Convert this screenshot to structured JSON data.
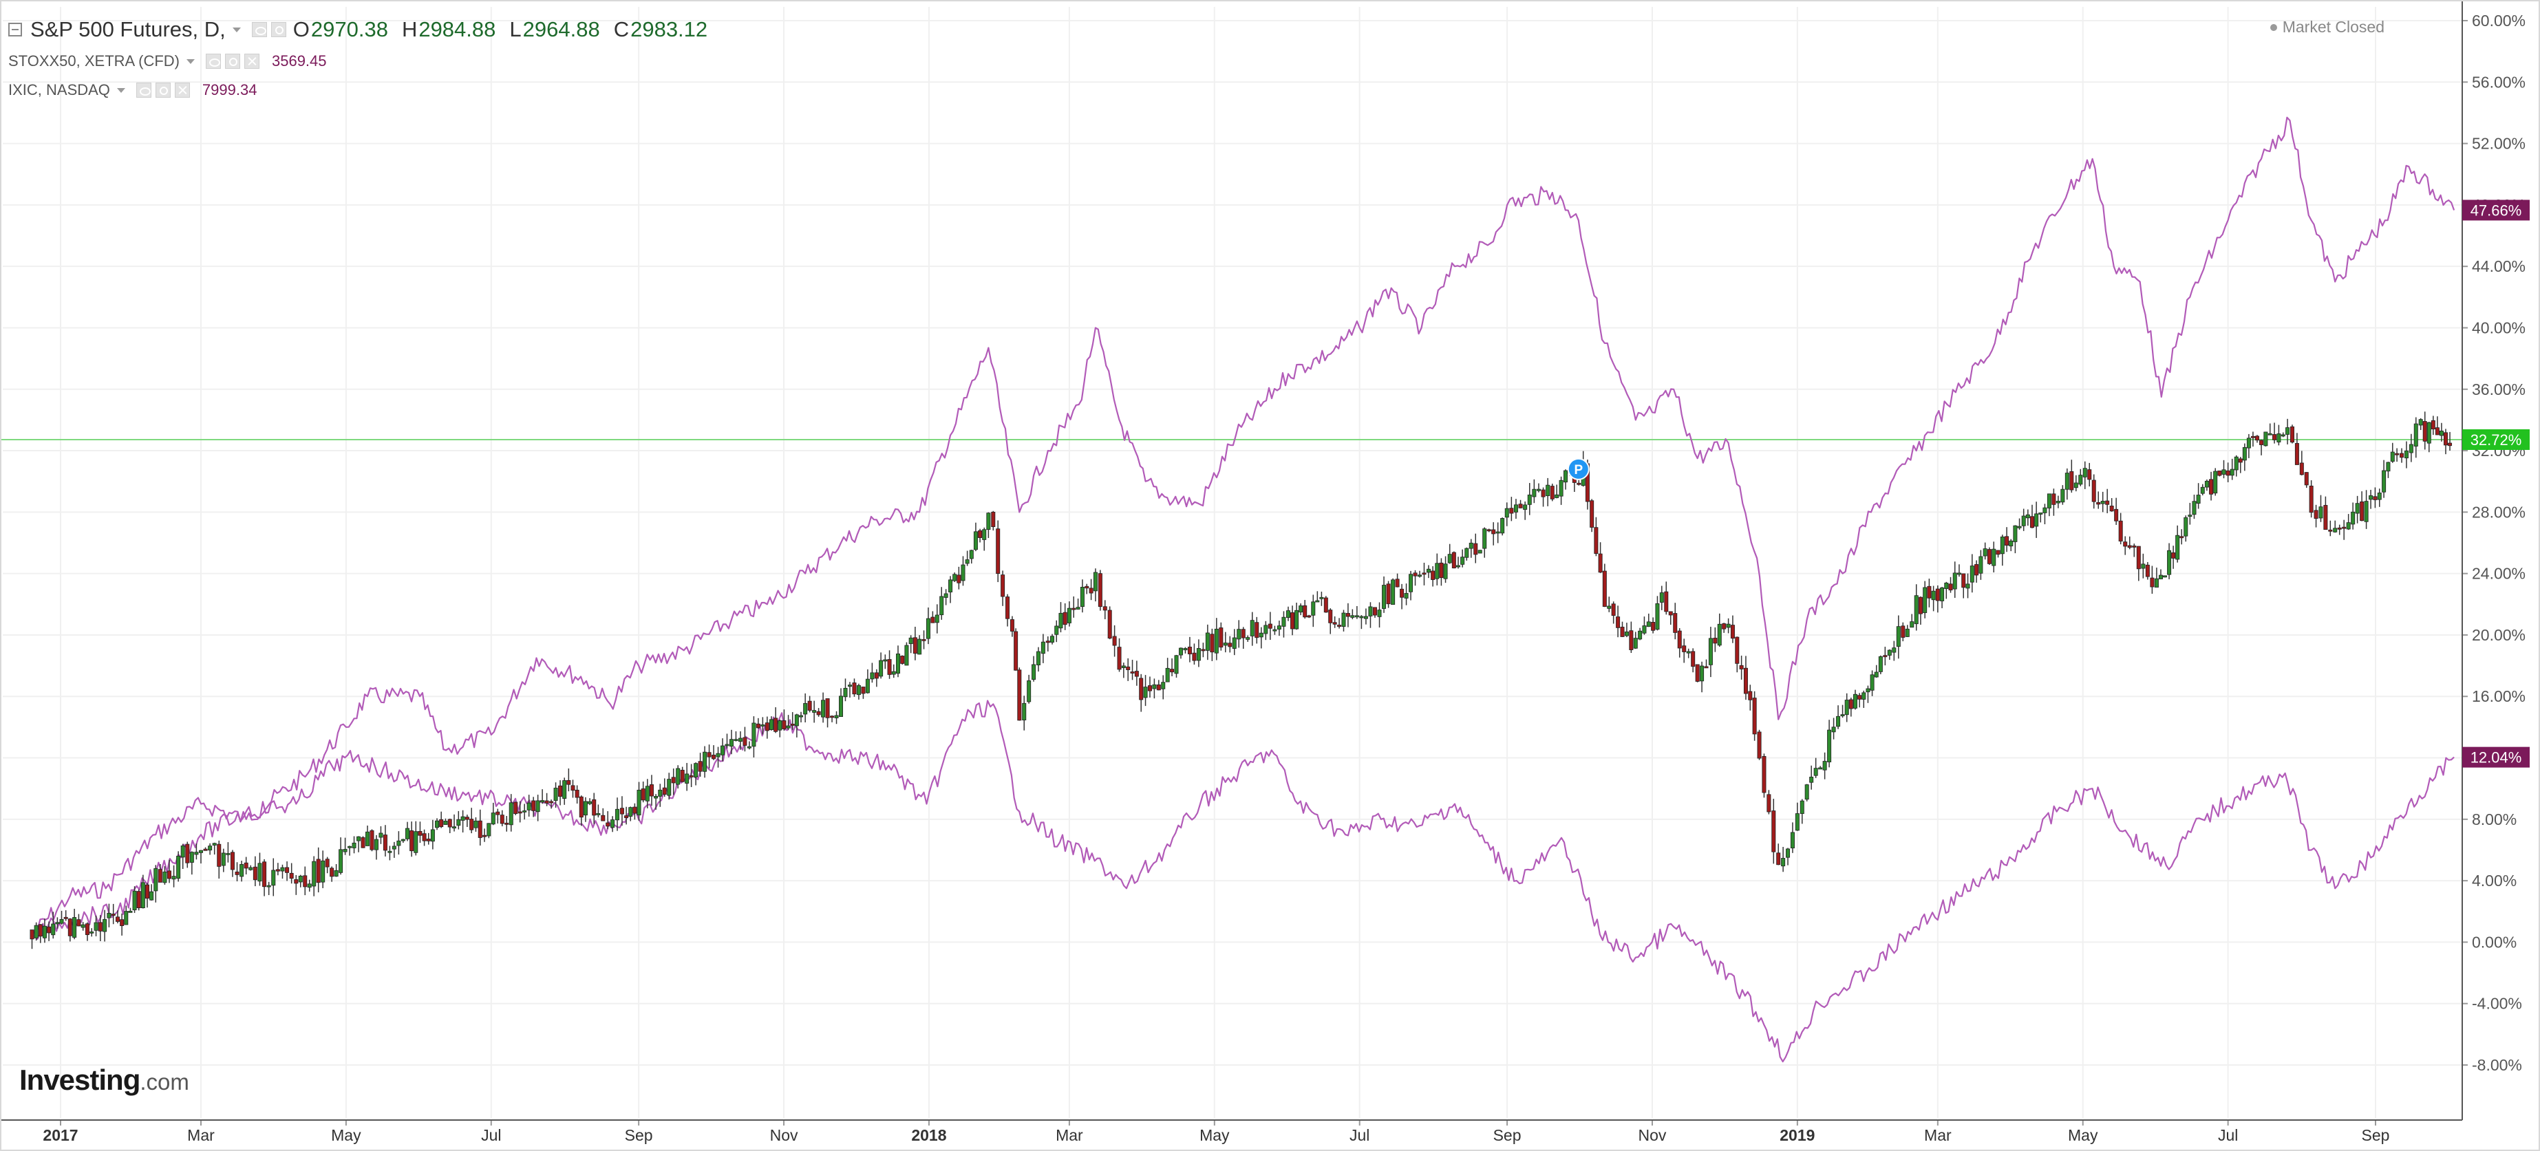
{
  "header": {
    "symbol": "S&P 500 Futures, D,",
    "ohlc": [
      {
        "label": "O",
        "value": "2970.38"
      },
      {
        "label": "H",
        "value": "2984.88"
      },
      {
        "label": "L",
        "value": "2964.88"
      },
      {
        "label": "C",
        "value": "2983.12"
      }
    ],
    "overlays": [
      {
        "name": "STOXX50, XETRA (CFD)",
        "value": "3569.45"
      },
      {
        "name": "IXIC, NASDAQ",
        "value": "7999.34"
      }
    ],
    "market_status": "Market Closed"
  },
  "logo": {
    "main": "Investing",
    "suffix": ".com"
  },
  "colors": {
    "overlay_line": "#b25bb8",
    "candle_up": "#2e8b2e",
    "candle_down": "#a01c1c",
    "current_price_line": "#7fd97f",
    "badge_high": "#7b1a5a",
    "badge_current": "#22c11f",
    "badge_low": "#7b1a5a",
    "grid": "#f0f0f0",
    "axis_text": "#555555"
  },
  "chart_data": {
    "type": "line",
    "title": "",
    "xlabel": "",
    "ylabel": "",
    "y_unit": "percent",
    "ylim": [
      -9.5,
      61.5
    ],
    "grid": true,
    "x_range": [
      "2016-12-20",
      "2019-10-12"
    ],
    "y_ticks": [
      "60.00%",
      "56.00%",
      "52.00%",
      "48.00%",
      "44.00%",
      "40.00%",
      "36.00%",
      "32.00%",
      "28.00%",
      "24.00%",
      "20.00%",
      "16.00%",
      "12.00%",
      "8.00%",
      "4.00%",
      "0.00%",
      "-4.00%",
      "-8.00%"
    ],
    "x_ticks": [
      {
        "label": "2017",
        "date": "2017-01-01",
        "bold": true
      },
      {
        "label": "Mar",
        "date": "2017-03-01",
        "bold": false
      },
      {
        "label": "May",
        "date": "2017-05-01",
        "bold": false
      },
      {
        "label": "Jul",
        "date": "2017-07-01",
        "bold": false
      },
      {
        "label": "Sep",
        "date": "2017-09-01",
        "bold": false
      },
      {
        "label": "Nov",
        "date": "2017-11-01",
        "bold": false
      },
      {
        "label": "2018",
        "date": "2018-01-01",
        "bold": true
      },
      {
        "label": "Mar",
        "date": "2018-03-01",
        "bold": false
      },
      {
        "label": "May",
        "date": "2018-05-01",
        "bold": false
      },
      {
        "label": "Jul",
        "date": "2018-07-01",
        "bold": false
      },
      {
        "label": "Sep",
        "date": "2018-09-01",
        "bold": false
      },
      {
        "label": "Nov",
        "date": "2018-11-01",
        "bold": false
      },
      {
        "label": "2019",
        "date": "2019-01-01",
        "bold": true
      },
      {
        "label": "Mar",
        "date": "2019-03-01",
        "bold": false
      },
      {
        "label": "May",
        "date": "2019-05-01",
        "bold": false
      },
      {
        "label": "Jul",
        "date": "2019-07-01",
        "bold": false
      },
      {
        "label": "Sep",
        "date": "2019-09-01",
        "bold": false
      }
    ],
    "series": [
      {
        "name": "IXIC, NASDAQ",
        "style": "line",
        "points": [
          [
            "2016-12-20",
            0.5
          ],
          [
            "2017-01-05",
            3.0
          ],
          [
            "2017-01-20",
            3.5
          ],
          [
            "2017-02-10",
            7.0
          ],
          [
            "2017-03-01",
            9.0
          ],
          [
            "2017-03-20",
            8.0
          ],
          [
            "2017-04-15",
            11.0
          ],
          [
            "2017-05-01",
            14.0
          ],
          [
            "2017-05-10",
            16.0
          ],
          [
            "2017-06-01",
            16.0
          ],
          [
            "2017-06-12",
            12.5
          ],
          [
            "2017-07-01",
            13.5
          ],
          [
            "2017-07-20",
            18.5
          ],
          [
            "2017-08-10",
            17.0
          ],
          [
            "2017-08-20",
            15.5
          ],
          [
            "2017-09-01",
            18.0
          ],
          [
            "2017-09-20",
            19.0
          ],
          [
            "2017-10-10",
            21.0
          ],
          [
            "2017-10-25",
            22.0
          ],
          [
            "2017-11-10",
            24.0
          ],
          [
            "2017-11-25",
            26.0
          ],
          [
            "2017-12-10",
            27.5
          ],
          [
            "2017-12-28",
            28.0
          ],
          [
            "2018-01-10",
            33.0
          ],
          [
            "2018-01-26",
            38.7
          ],
          [
            "2018-02-08",
            28.0
          ],
          [
            "2018-02-20",
            32.0
          ],
          [
            "2018-03-05",
            35.0
          ],
          [
            "2018-03-12",
            40.0
          ],
          [
            "2018-03-22",
            34.0
          ],
          [
            "2018-04-02",
            30.0
          ],
          [
            "2018-04-10",
            29.0
          ],
          [
            "2018-04-25",
            28.5
          ],
          [
            "2018-05-10",
            33.0
          ],
          [
            "2018-06-01",
            37.0
          ],
          [
            "2018-06-20",
            38.5
          ],
          [
            "2018-07-01",
            40.0
          ],
          [
            "2018-07-12",
            42.5
          ],
          [
            "2018-07-27",
            40.0
          ],
          [
            "2018-08-10",
            44.0
          ],
          [
            "2018-08-25",
            45.5
          ],
          [
            "2018-09-01",
            48.0
          ],
          [
            "2018-09-20",
            48.8
          ],
          [
            "2018-10-01",
            47.0
          ],
          [
            "2018-10-12",
            39.0
          ],
          [
            "2018-10-25",
            34.0
          ],
          [
            "2018-11-01",
            34.5
          ],
          [
            "2018-11-10",
            36.0
          ],
          [
            "2018-11-20",
            31.5
          ],
          [
            "2018-12-03",
            32.5
          ],
          [
            "2018-12-15",
            25.0
          ],
          [
            "2018-12-24",
            14.5
          ],
          [
            "2019-01-05",
            21.0
          ],
          [
            "2019-01-20",
            24.0
          ],
          [
            "2019-02-01",
            28.0
          ],
          [
            "2019-02-20",
            32.0
          ],
          [
            "2019-03-05",
            35.0
          ],
          [
            "2019-03-25",
            39.0
          ],
          [
            "2019-04-10",
            45.0
          ],
          [
            "2019-04-25",
            49.0
          ],
          [
            "2019-05-05",
            51.0
          ],
          [
            "2019-05-14",
            44.0
          ],
          [
            "2019-05-25",
            43.0
          ],
          [
            "2019-06-03",
            35.5
          ],
          [
            "2019-06-15",
            42.0
          ],
          [
            "2019-07-01",
            47.0
          ],
          [
            "2019-07-15",
            51.0
          ],
          [
            "2019-07-27",
            53.5
          ],
          [
            "2019-08-05",
            47.0
          ],
          [
            "2019-08-15",
            43.0
          ],
          [
            "2019-08-25",
            45.0
          ],
          [
            "2019-09-05",
            47.0
          ],
          [
            "2019-09-15",
            50.5
          ],
          [
            "2019-09-25",
            49.0
          ],
          [
            "2019-10-04",
            47.66
          ]
        ]
      },
      {
        "name": "STOXX50, XETRA (CFD)",
        "style": "line",
        "points": [
          [
            "2016-12-20",
            0.5
          ],
          [
            "2017-01-05",
            1.5
          ],
          [
            "2017-01-25",
            2.0
          ],
          [
            "2017-02-10",
            4.5
          ],
          [
            "2017-03-01",
            7.0
          ],
          [
            "2017-03-20",
            8.5
          ],
          [
            "2017-04-10",
            9.0
          ],
          [
            "2017-04-25",
            11.5
          ],
          [
            "2017-05-05",
            12.0
          ],
          [
            "2017-05-20",
            11.0
          ],
          [
            "2017-06-05",
            10.0
          ],
          [
            "2017-06-25",
            9.5
          ],
          [
            "2017-07-10",
            9.0
          ],
          [
            "2017-07-30",
            8.5
          ],
          [
            "2017-08-15",
            7.5
          ],
          [
            "2017-09-01",
            8.0
          ],
          [
            "2017-09-20",
            10.5
          ],
          [
            "2017-10-10",
            12.5
          ],
          [
            "2017-10-30",
            14.5
          ],
          [
            "2017-11-15",
            12.5
          ],
          [
            "2017-12-01",
            12.0
          ],
          [
            "2017-12-15",
            11.5
          ],
          [
            "2017-12-31",
            9.0
          ],
          [
            "2018-01-15",
            14.5
          ],
          [
            "2018-01-28",
            15.5
          ],
          [
            "2018-02-08",
            8.5
          ],
          [
            "2018-02-25",
            6.5
          ],
          [
            "2018-03-15",
            5.0
          ],
          [
            "2018-03-25",
            3.5
          ],
          [
            "2018-04-10",
            6.0
          ],
          [
            "2018-04-25",
            9.0
          ],
          [
            "2018-05-15",
            11.5
          ],
          [
            "2018-05-25",
            12.5
          ],
          [
            "2018-06-05",
            9.0
          ],
          [
            "2018-06-25",
            7.0
          ],
          [
            "2018-07-10",
            8.0
          ],
          [
            "2018-07-25",
            7.5
          ],
          [
            "2018-08-10",
            9.0
          ],
          [
            "2018-08-25",
            6.0
          ],
          [
            "2018-09-05",
            4.0
          ],
          [
            "2018-09-25",
            6.5
          ],
          [
            "2018-10-10",
            0.5
          ],
          [
            "2018-10-25",
            -1.0
          ],
          [
            "2018-11-10",
            1.0
          ],
          [
            "2018-11-25",
            -1.0
          ],
          [
            "2018-12-10",
            -3.5
          ],
          [
            "2018-12-27",
            -7.5
          ],
          [
            "2019-01-10",
            -4.0
          ],
          [
            "2019-01-30",
            -2.0
          ],
          [
            "2019-02-20",
            1.0
          ],
          [
            "2019-03-10",
            3.0
          ],
          [
            "2019-03-30",
            5.0
          ],
          [
            "2019-04-20",
            8.5
          ],
          [
            "2019-05-05",
            10.0
          ],
          [
            "2019-05-20",
            7.0
          ],
          [
            "2019-06-05",
            5.0
          ],
          [
            "2019-06-20",
            8.0
          ],
          [
            "2019-07-05",
            9.5
          ],
          [
            "2019-07-25",
            11.0
          ],
          [
            "2019-08-05",
            6.0
          ],
          [
            "2019-08-15",
            3.5
          ],
          [
            "2019-08-30",
            5.5
          ],
          [
            "2019-09-15",
            9.0
          ],
          [
            "2019-09-25",
            10.5
          ],
          [
            "2019-10-04",
            12.04
          ]
        ]
      },
      {
        "name": "S&P 500 Futures",
        "style": "candlestick",
        "points": [
          [
            "2016-12-20",
            0.8
          ],
          [
            "2017-01-05",
            1.0
          ],
          [
            "2017-01-25",
            1.5
          ],
          [
            "2017-02-10",
            4.0
          ],
          [
            "2017-03-01",
            6.5
          ],
          [
            "2017-03-20",
            4.5
          ],
          [
            "2017-04-10",
            4.0
          ],
          [
            "2017-04-25",
            5.0
          ],
          [
            "2017-05-10",
            6.5
          ],
          [
            "2017-05-25",
            6.5
          ],
          [
            "2017-06-10",
            7.5
          ],
          [
            "2017-06-30",
            7.5
          ],
          [
            "2017-07-15",
            9.0
          ],
          [
            "2017-07-30",
            10.0
          ],
          [
            "2017-08-15",
            8.0
          ],
          [
            "2017-08-25",
            8.5
          ],
          [
            "2017-09-10",
            10.0
          ],
          [
            "2017-09-25",
            11.5
          ],
          [
            "2017-10-10",
            13.0
          ],
          [
            "2017-10-25",
            14.0
          ],
          [
            "2017-11-10",
            15.0
          ],
          [
            "2017-11-25",
            15.5
          ],
          [
            "2017-12-10",
            17.5
          ],
          [
            "2017-12-28",
            19.5
          ],
          [
            "2018-01-10",
            23.0
          ],
          [
            "2018-01-26",
            28.0
          ],
          [
            "2018-02-05",
            19.5
          ],
          [
            "2018-02-08",
            15.0
          ],
          [
            "2018-02-20",
            20.0
          ],
          [
            "2018-03-01",
            21.5
          ],
          [
            "2018-03-12",
            23.5
          ],
          [
            "2018-03-22",
            18.0
          ],
          [
            "2018-04-02",
            16.0
          ],
          [
            "2018-04-15",
            18.5
          ],
          [
            "2018-04-30",
            19.5
          ],
          [
            "2018-05-15",
            20.5
          ],
          [
            "2018-06-01",
            21.0
          ],
          [
            "2018-06-15",
            22.0
          ],
          [
            "2018-06-28",
            20.5
          ],
          [
            "2018-07-15",
            23.0
          ],
          [
            "2018-07-30",
            23.5
          ],
          [
            "2018-08-15",
            25.5
          ],
          [
            "2018-08-30",
            27.5
          ],
          [
            "2018-09-20",
            29.5
          ],
          [
            "2018-10-03",
            30.5
          ],
          [
            "2018-10-12",
            22.5
          ],
          [
            "2018-10-25",
            19.0
          ],
          [
            "2018-11-05",
            22.0
          ],
          [
            "2018-11-20",
            17.5
          ],
          [
            "2018-12-03",
            21.0
          ],
          [
            "2018-12-14",
            14.0
          ],
          [
            "2018-12-24",
            4.5
          ],
          [
            "2019-01-05",
            10.0
          ],
          [
            "2019-01-20",
            15.0
          ],
          [
            "2019-02-05",
            18.0
          ],
          [
            "2019-02-20",
            22.0
          ],
          [
            "2019-03-10",
            23.5
          ],
          [
            "2019-03-30",
            26.0
          ],
          [
            "2019-04-15",
            28.5
          ],
          [
            "2019-04-30",
            30.5
          ],
          [
            "2019-05-15",
            27.0
          ],
          [
            "2019-06-01",
            23.0
          ],
          [
            "2019-06-15",
            28.0
          ],
          [
            "2019-07-01",
            31.0
          ],
          [
            "2019-07-15",
            33.0
          ],
          [
            "2019-07-26",
            34.0
          ],
          [
            "2019-08-05",
            28.5
          ],
          [
            "2019-08-15",
            27.0
          ],
          [
            "2019-08-30",
            28.5
          ],
          [
            "2019-09-10",
            32.0
          ],
          [
            "2019-09-20",
            33.5
          ],
          [
            "2019-10-04",
            32.72
          ]
        ]
      }
    ],
    "price_labels": [
      {
        "value": 47.66,
        "label": "47.66%",
        "series": "IXIC, NASDAQ"
      },
      {
        "value": 32.72,
        "label": "32.72%",
        "series": "S&P 500 Futures"
      },
      {
        "value": 12.04,
        "label": "12.04%",
        "series": "STOXX50, XETRA (CFD)"
      }
    ],
    "horizontal_line": 32.72,
    "event_marker": {
      "date": "2018-10-01",
      "value": 30.8,
      "label": "P"
    }
  }
}
